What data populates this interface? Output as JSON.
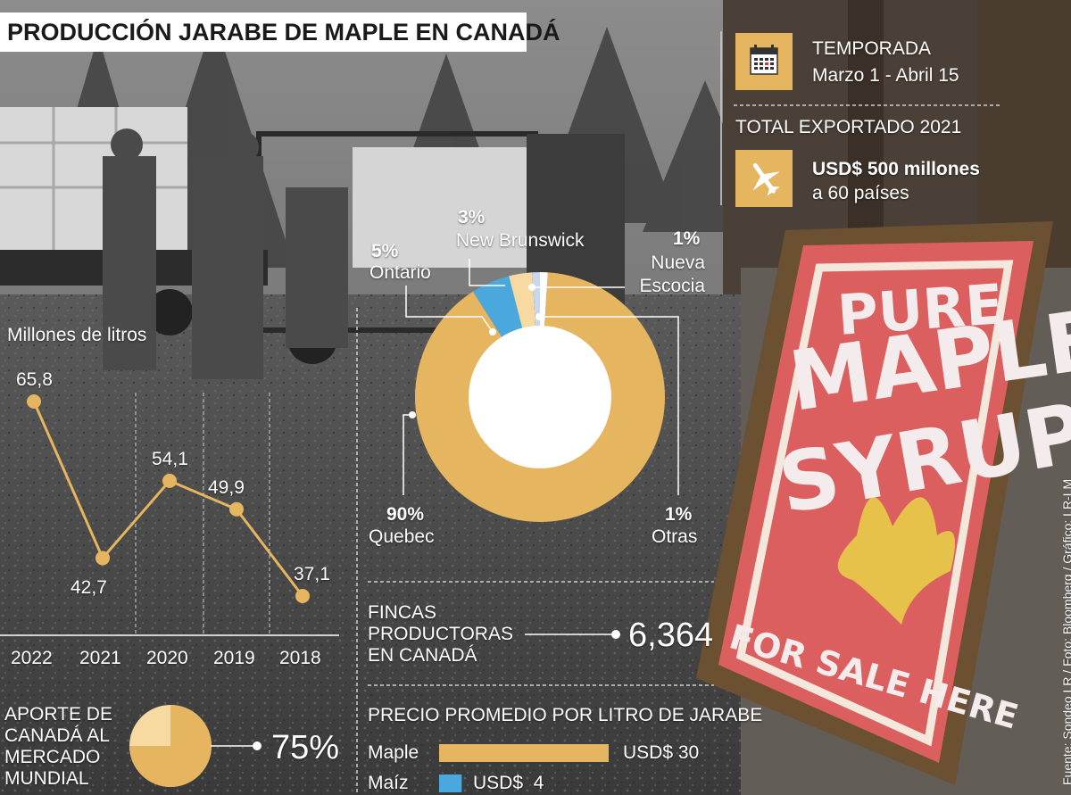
{
  "title": "PRODUCCIÓN JARABE DE MAPLE EN CANADÁ",
  "colors": {
    "accent": "#e6b55f",
    "blue": "#4aa8dc",
    "light_yellow": "#f7d9a2",
    "light_blue": "#c9d6ee",
    "white": "#ffffff"
  },
  "season": {
    "icon": "calendar-icon",
    "label": "TEMPORADA",
    "value": "Marzo 1 - Abril 15"
  },
  "exports": {
    "icon": "airplane-icon",
    "label": "TOTAL EXPORTADO 2021",
    "value": "USD$ 500 millones",
    "detail": "a 60 países"
  },
  "farms": {
    "label_lines": [
      "FINCAS",
      "PRODUCTORAS",
      "EN CANADÁ"
    ],
    "value": "6,364"
  },
  "contribution": {
    "label_lines": [
      "APORTE DE",
      "CANADÁ AL",
      "MERCADO",
      "MUNDIAL"
    ],
    "value": "75%",
    "fraction": 0.75
  },
  "source": "Fuente: Sondeo LR / Foto: Bloomberg / Gráfico: LR-LM",
  "chart_data": [
    {
      "type": "line",
      "title": "",
      "ylabel": "Millones de litros",
      "categories": [
        "2022",
        "2021",
        "2020",
        "2019",
        "2018"
      ],
      "values": [
        65.8,
        42.7,
        54.1,
        49.9,
        37.1
      ],
      "value_labels": [
        "65,8",
        "42,7",
        "54,1",
        "49,9",
        "37,1"
      ],
      "ylim": [
        30,
        70
      ]
    },
    {
      "type": "pie",
      "variant": "donut",
      "slices": [
        {
          "label": "Quebec",
          "percent_label": "90%",
          "value": 90
        },
        {
          "label": "Ontario",
          "percent_label": "5%",
          "value": 5
        },
        {
          "label": "New Brunswick",
          "percent_label": "3%",
          "value": 3
        },
        {
          "label": "Nueva Escocia",
          "percent_label": "1%",
          "value": 1
        },
        {
          "label": "Otras",
          "percent_label": "1%",
          "value": 1
        }
      ]
    },
    {
      "type": "bar",
      "orientation": "horizontal",
      "title": "PRECIO PROMEDIO POR LITRO DE JARABE",
      "categories": [
        "Maple",
        "Maíz"
      ],
      "values": [
        30,
        4
      ],
      "value_labels": [
        "USD$ 30",
        "USD$  4"
      ]
    }
  ]
}
